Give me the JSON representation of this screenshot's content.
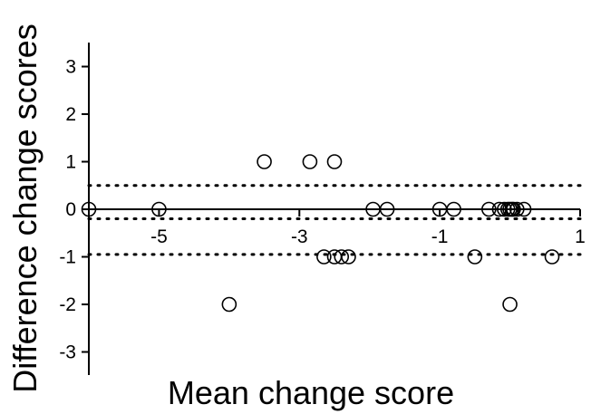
{
  "chart_data": {
    "type": "scatter",
    "title": "",
    "xlabel": "Mean change score",
    "ylabel": "Difference change scores",
    "xlim": [
      -6.0,
      1.0
    ],
    "ylim": [
      -3.5,
      3.5
    ],
    "xticks": [
      -5,
      -3,
      -1,
      1
    ],
    "xtick_labels": [
      "-5",
      "-3",
      "-1",
      "1"
    ],
    "yticks": [
      -3,
      -2,
      -1,
      0,
      1,
      2,
      3
    ],
    "ytick_labels": [
      "-3",
      "-2",
      "-1",
      "0",
      "1",
      "2",
      "3"
    ],
    "grid": false,
    "reference_lines": [
      {
        "y": 0.5,
        "style": "dotted"
      },
      {
        "y": -0.2,
        "style": "dotted"
      },
      {
        "y": -0.95,
        "style": "dotted"
      }
    ],
    "points": [
      {
        "x": -6.0,
        "y": 0
      },
      {
        "x": -5.0,
        "y": 0
      },
      {
        "x": -4.0,
        "y": -2
      },
      {
        "x": -3.5,
        "y": 1
      },
      {
        "x": -2.85,
        "y": 1
      },
      {
        "x": -2.5,
        "y": 1
      },
      {
        "x": -2.65,
        "y": -1
      },
      {
        "x": -2.5,
        "y": -1
      },
      {
        "x": -2.4,
        "y": -1
      },
      {
        "x": -2.3,
        "y": -1
      },
      {
        "x": -1.95,
        "y": 0
      },
      {
        "x": -1.75,
        "y": 0
      },
      {
        "x": -1.0,
        "y": 0
      },
      {
        "x": -0.8,
        "y": 0
      },
      {
        "x": -0.5,
        "y": -1
      },
      {
        "x": -0.3,
        "y": 0
      },
      {
        "x": -0.15,
        "y": 0
      },
      {
        "x": -0.08,
        "y": 0
      },
      {
        "x": -0.03,
        "y": 0
      },
      {
        "x": 0.0,
        "y": 0
      },
      {
        "x": 0.03,
        "y": 0
      },
      {
        "x": 0.05,
        "y": 0
      },
      {
        "x": 0.1,
        "y": 0
      },
      {
        "x": 0.2,
        "y": 0
      },
      {
        "x": 0.0,
        "y": -2
      },
      {
        "x": 0.6,
        "y": -1
      }
    ]
  }
}
